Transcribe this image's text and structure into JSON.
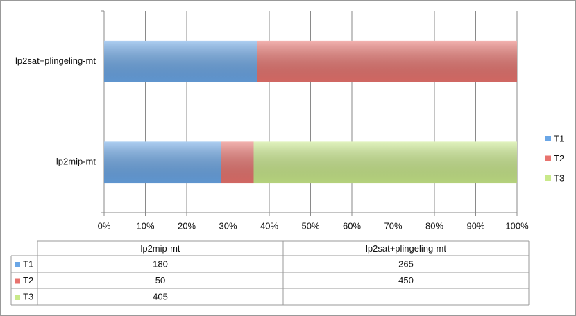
{
  "chart_data": {
    "type": "bar",
    "orientation": "horizontal",
    "stacking": "percent",
    "categories": [
      "lp2mip-mt",
      "lp2sat+plingeling-mt"
    ],
    "series": [
      {
        "name": "T1",
        "color": "#6aa6e6",
        "values": [
          180,
          265
        ]
      },
      {
        "name": "T2",
        "color": "#e8736e",
        "values": [
          50,
          450
        ]
      },
      {
        "name": "T3",
        "color": "#c9e98a",
        "values": [
          405,
          null
        ]
      }
    ],
    "xlim": [
      0,
      100
    ],
    "xticks": [
      {
        "value": 0,
        "label": "0%"
      },
      {
        "value": 10,
        "label": "10%"
      },
      {
        "value": 20,
        "label": "20%"
      },
      {
        "value": 30,
        "label": "30%"
      },
      {
        "value": 40,
        "label": "40%"
      },
      {
        "value": 50,
        "label": "50%"
      },
      {
        "value": 60,
        "label": "60%"
      },
      {
        "value": 70,
        "label": "70%"
      },
      {
        "value": 80,
        "label": "80%"
      },
      {
        "value": 90,
        "label": "90%"
      },
      {
        "value": 100,
        "label": "100%"
      }
    ],
    "grid": true,
    "legend": "right",
    "data_table": true
  }
}
